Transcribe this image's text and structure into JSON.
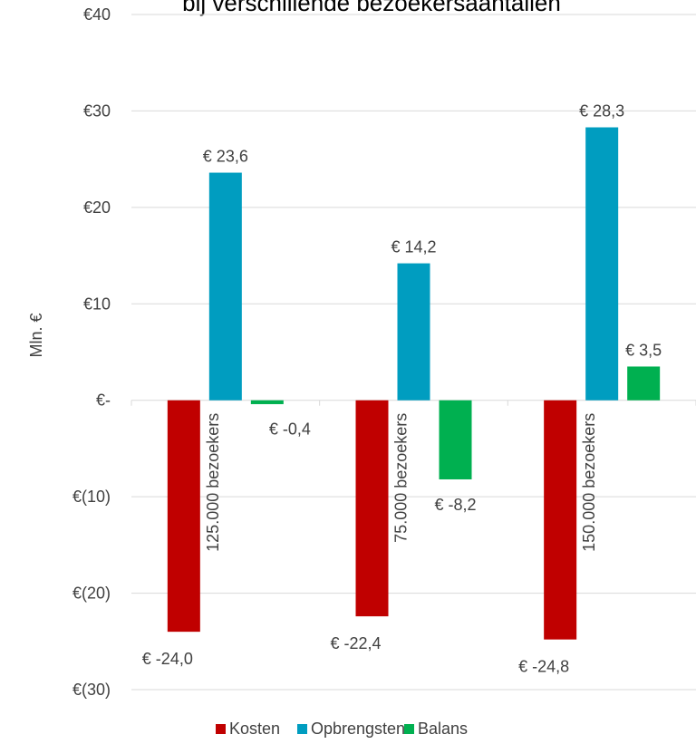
{
  "chart_data": {
    "type": "bar",
    "title": "bij verschillende bezoekersaantallen",
    "ylabel": "Mln. €",
    "ylim": [
      -30,
      40
    ],
    "y_ticks": [
      {
        "value": 40,
        "label": "€40"
      },
      {
        "value": 30,
        "label": "€30"
      },
      {
        "value": 20,
        "label": "€20"
      },
      {
        "value": 10,
        "label": "€10"
      },
      {
        "value": 0,
        "label": "€-"
      },
      {
        "value": -10,
        "label": "€(10)"
      },
      {
        "value": -20,
        "label": "€(20)"
      },
      {
        "value": -30,
        "label": "€(30)"
      }
    ],
    "categories": [
      "125.000 bezoekers",
      "75.000 bezoekers",
      "150.000 bezoekers"
    ],
    "series": [
      {
        "name": "Kosten",
        "color": "#C00000",
        "values": [
          -24.0,
          -22.4,
          -24.8
        ],
        "labels": [
          "€ -24,0",
          "€ -22,4",
          "€ -24,8"
        ]
      },
      {
        "name": "Opbrengsten",
        "color": "#009DC0",
        "values": [
          23.6,
          14.2,
          28.3
        ],
        "labels": [
          "€ 23,6",
          "€ 14,2",
          "€ 28,3"
        ]
      },
      {
        "name": "Balans",
        "color": "#00B050",
        "values": [
          -0.4,
          -8.2,
          3.5
        ],
        "labels": [
          "€ -0,4",
          "€ -8,2",
          "€ 3,5"
        ]
      }
    ],
    "grid": true,
    "legend": "bottom"
  }
}
